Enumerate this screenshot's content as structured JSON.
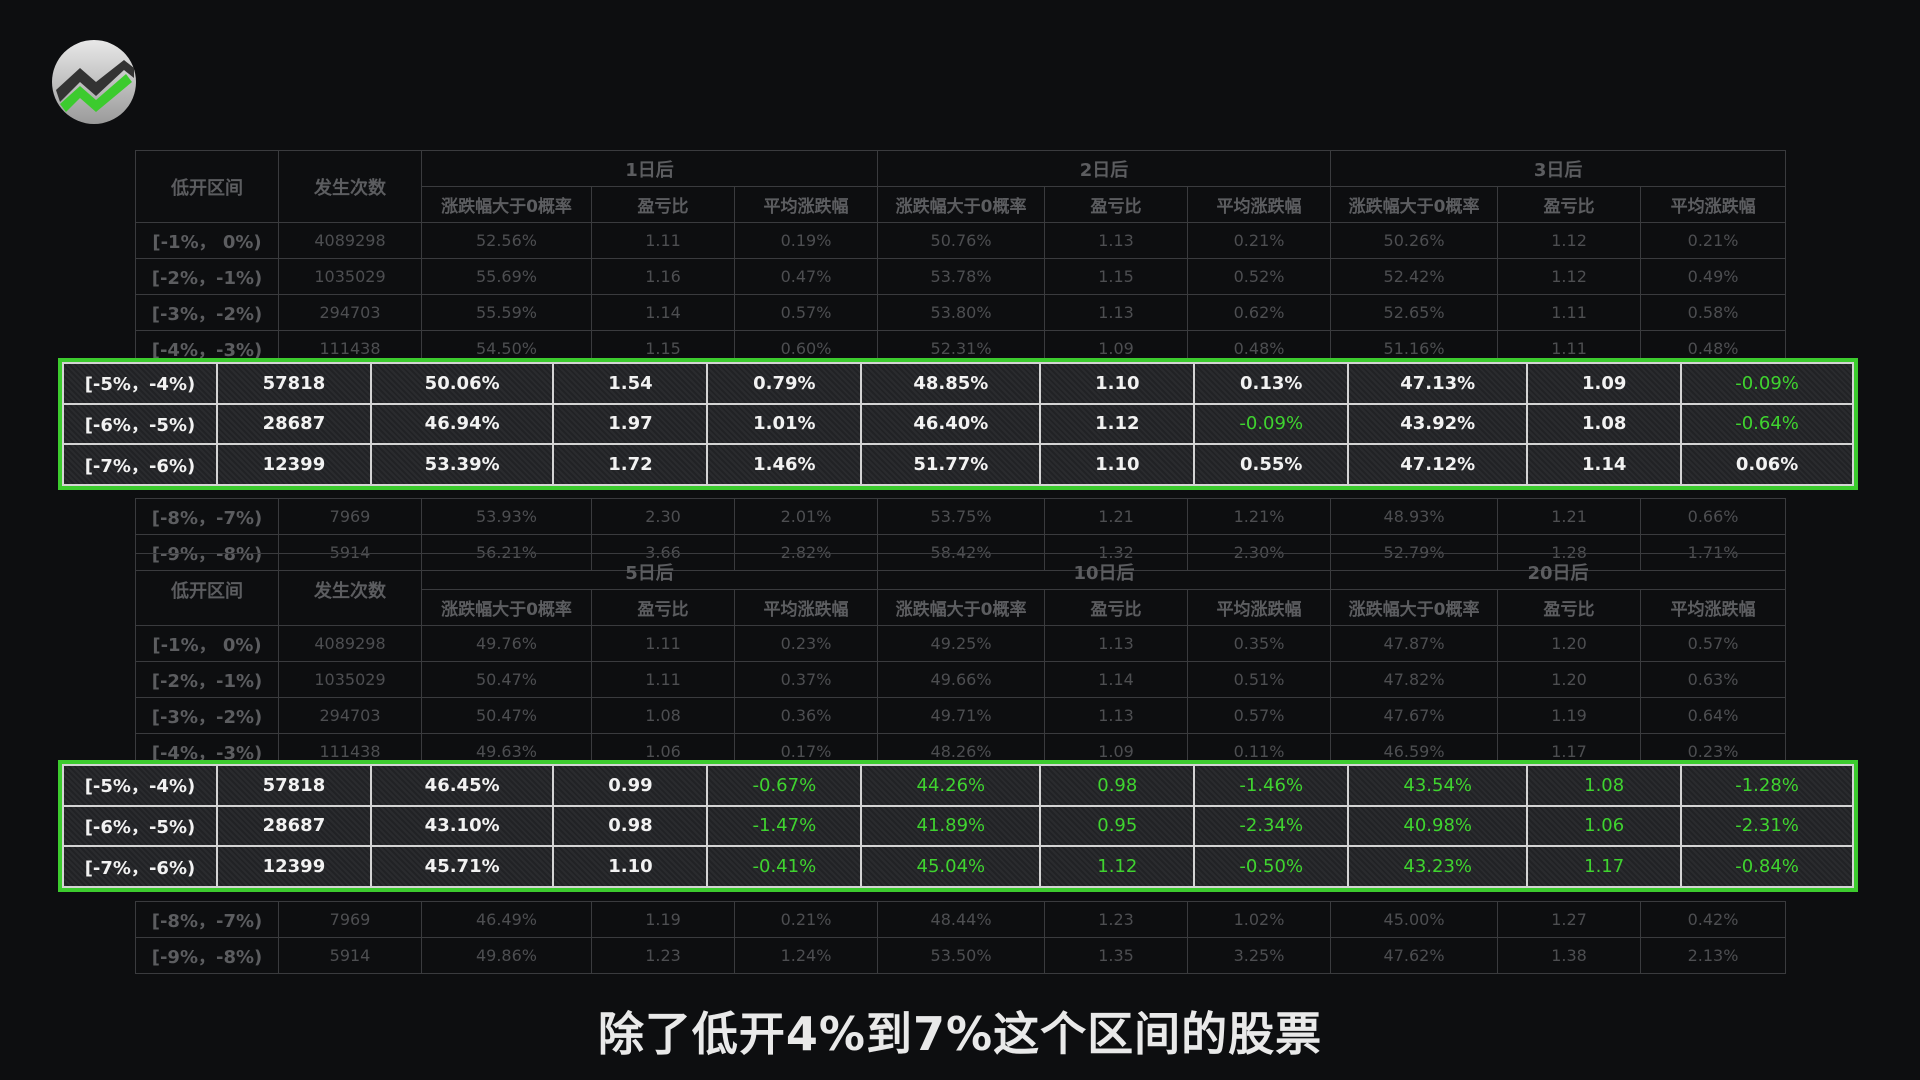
{
  "subtitle": "除了低开4%到7%这个区间的股票",
  "accent_color": "#3ccb2e",
  "logo": {
    "icon": "trend-chart-logo-icon"
  },
  "table_top": {
    "col_range": "低开区间",
    "col_count": "发生次数",
    "groups": [
      "1日后",
      "2日后",
      "3日后"
    ],
    "subheaders": [
      "涨跌幅大于0概率",
      "盈亏比",
      "平均涨跌幅"
    ],
    "rows_before": [
      [
        "[-1%， 0%)",
        "4089298",
        "52.56%",
        "1.11",
        "0.19%",
        "50.76%",
        "1.13",
        "0.21%",
        "50.26%",
        "1.12",
        "0.21%"
      ],
      [
        "[-2%，-1%)",
        "1035029",
        "55.69%",
        "1.16",
        "0.47%",
        "53.78%",
        "1.15",
        "0.52%",
        "52.42%",
        "1.12",
        "0.49%"
      ],
      [
        "[-3%，-2%)",
        "294703",
        "55.59%",
        "1.14",
        "0.57%",
        "53.80%",
        "1.13",
        "0.62%",
        "52.65%",
        "1.11",
        "0.58%"
      ],
      [
        "[-4%，-3%)",
        "111438",
        "54.50%",
        "1.15",
        "0.60%",
        "52.31%",
        "1.09",
        "0.48%",
        "51.16%",
        "1.11",
        "0.48%"
      ]
    ],
    "rows_after": [
      [
        "[-8%，-7%)",
        "7969",
        "53.93%",
        "2.30",
        "2.01%",
        "53.75%",
        "1.21",
        "1.21%",
        "48.93%",
        "1.21",
        "0.66%"
      ],
      [
        "[-9%，-8%)",
        "5914",
        "56.21%",
        "3.66",
        "2.82%",
        "58.42%",
        "1.32",
        "2.30%",
        "52.79%",
        "1.28",
        "1.71%"
      ]
    ]
  },
  "highlight_top": [
    [
      "[-5%，-4%)",
      "57818",
      "50.06%",
      "1.54",
      "0.79%",
      "48.85%",
      "1.10",
      "0.13%",
      "47.13%",
      "1.09",
      "-0.09%"
    ],
    [
      "[-6%，-5%)",
      "28687",
      "46.94%",
      "1.97",
      "1.01%",
      "46.40%",
      "1.12",
      "-0.09%",
      "43.92%",
      "1.08",
      "-0.64%"
    ],
    [
      "[-7%，-6%)",
      "12399",
      "53.39%",
      "1.72",
      "1.46%",
      "51.77%",
      "1.10",
      "0.55%",
      "47.12%",
      "1.14",
      "0.06%"
    ]
  ],
  "table_bottom": {
    "col_range": "低开区间",
    "col_count": "发生次数",
    "groups": [
      "5日后",
      "10日后",
      "20日后"
    ],
    "subheaders": [
      "涨跌幅大于0概率",
      "盈亏比",
      "平均涨跌幅"
    ],
    "rows_before": [
      [
        "[-1%， 0%)",
        "4089298",
        "49.76%",
        "1.11",
        "0.23%",
        "49.25%",
        "1.13",
        "0.35%",
        "47.87%",
        "1.20",
        "0.57%"
      ],
      [
        "[-2%，-1%)",
        "1035029",
        "50.47%",
        "1.11",
        "0.37%",
        "49.66%",
        "1.14",
        "0.51%",
        "47.82%",
        "1.20",
        "0.63%"
      ],
      [
        "[-3%，-2%)",
        "294703",
        "50.47%",
        "1.08",
        "0.36%",
        "49.71%",
        "1.13",
        "0.57%",
        "47.67%",
        "1.19",
        "0.64%"
      ],
      [
        "[-4%，-3%)",
        "111438",
        "49.63%",
        "1.06",
        "0.17%",
        "48.26%",
        "1.09",
        "0.11%",
        "46.59%",
        "1.17",
        "0.23%"
      ]
    ],
    "rows_after": [
      [
        "[-8%，-7%)",
        "7969",
        "46.49%",
        "1.19",
        "0.21%",
        "48.44%",
        "1.23",
        "1.02%",
        "45.00%",
        "1.27",
        "0.42%"
      ],
      [
        "[-9%，-8%)",
        "5914",
        "49.86%",
        "1.23",
        "1.24%",
        "53.50%",
        "1.35",
        "3.25%",
        "47.62%",
        "1.38",
        "2.13%"
      ]
    ]
  },
  "highlight_bottom": [
    [
      "[-5%，-4%)",
      "57818",
      "46.45%",
      "0.99",
      "-0.67%",
      "44.26%",
      "0.98",
      "-1.46%",
      "43.54%",
      "1.08",
      "-1.28%"
    ],
    [
      "[-6%，-5%)",
      "28687",
      "43.10%",
      "0.98",
      "-1.47%",
      "41.89%",
      "0.95",
      "-2.34%",
      "40.98%",
      "1.06",
      "-2.31%"
    ],
    [
      "[-7%，-6%)",
      "12399",
      "45.71%",
      "1.10",
      "-0.41%",
      "45.04%",
      "1.12",
      "-0.50%",
      "43.23%",
      "1.17",
      "-0.84%"
    ]
  ],
  "highlight_negative_cells_bottom": [
    [
      4,
      5,
      6,
      7,
      8,
      9,
      10
    ],
    [
      4,
      5,
      6,
      7,
      8,
      9,
      10
    ],
    [
      4,
      5,
      6,
      7,
      8,
      9,
      10
    ]
  ]
}
